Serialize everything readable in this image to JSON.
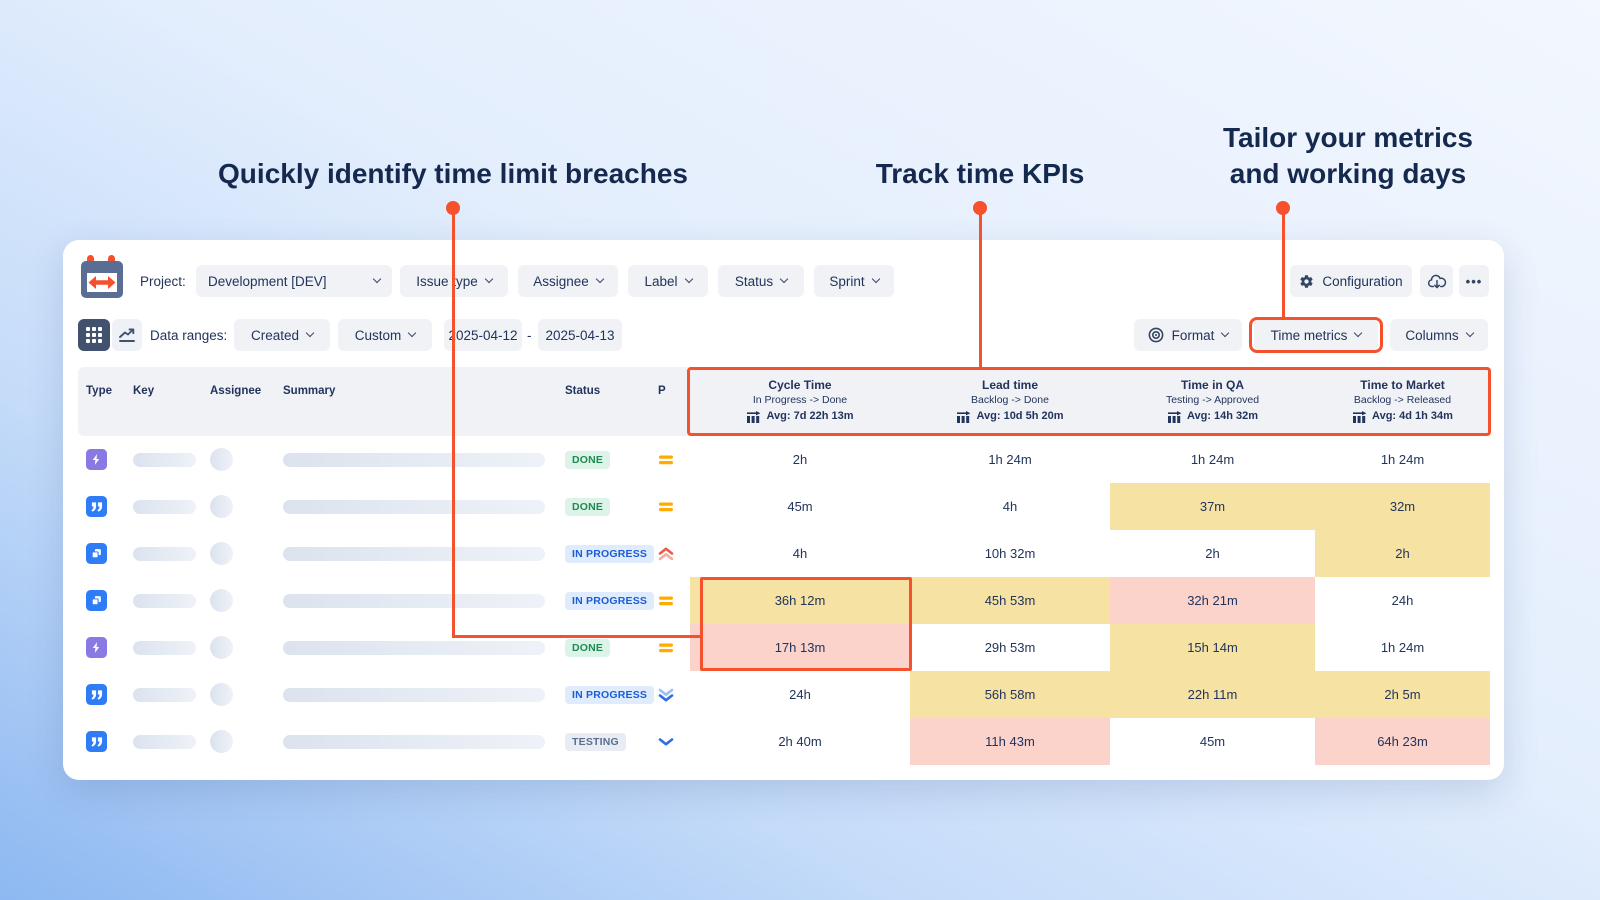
{
  "annotations": {
    "breaches": "Quickly identify time limit breaches",
    "kpis": "Track time KPIs",
    "tailor_line1": "Tailor your metrics",
    "tailor_line2": "and working days"
  },
  "toolbar": {
    "project_label": "Project:",
    "project_value": "Development [DEV]",
    "filters": [
      "Issue type",
      "Assignee",
      "Label",
      "Status",
      "Sprint"
    ],
    "configuration_label": "Configuration",
    "more_label": "•••"
  },
  "toolbar2": {
    "data_ranges_label": "Data ranges:",
    "range_field": "Created",
    "range_mode": "Custom",
    "date_from": "2025-04-12",
    "date_separator": "-",
    "date_to": "2025-04-13",
    "format_label": "Format",
    "time_metrics_label": "Time metrics",
    "columns_label": "Columns"
  },
  "table": {
    "columns": [
      "Type",
      "Key",
      "Assignee",
      "Summary",
      "Status",
      "P"
    ],
    "metrics": [
      {
        "title": "Cycle Time",
        "transition": "In Progress -> Done",
        "avg": "Avg: 7d 22h 13m"
      },
      {
        "title": "Lead time",
        "transition": "Backlog -> Done",
        "avg": "Avg: 10d 5h 20m"
      },
      {
        "title": "Time in QA",
        "transition": "Testing -> Approved",
        "avg": "Avg: 14h 32m"
      },
      {
        "title": "Time to Market",
        "transition": "Backlog -> Released",
        "avg": "Avg: 4d 1h 34m"
      }
    ],
    "rows": [
      {
        "type": "bolt",
        "status": "DONE",
        "status_kind": "done",
        "priority": "medium",
        "values": [
          "2h",
          "1h 24m",
          "1h 24m",
          "1h 24m"
        ],
        "cell_bg": [
          "white",
          "white",
          "white",
          "white"
        ]
      },
      {
        "type": "quote",
        "status": "DONE",
        "status_kind": "done",
        "priority": "medium",
        "values": [
          "45m",
          "4h",
          "37m",
          "32m"
        ],
        "cell_bg": [
          "white",
          "white",
          "yellow",
          "yellow"
        ]
      },
      {
        "type": "pages",
        "status": "IN PROGRESS",
        "status_kind": "inprogress",
        "priority": "highest",
        "values": [
          "4h",
          "10h 32m",
          "2h",
          "2h"
        ],
        "cell_bg": [
          "white",
          "white",
          "white",
          "yellow"
        ]
      },
      {
        "type": "pages",
        "status": "IN PROGRESS",
        "status_kind": "inprogress",
        "priority": "medium",
        "values": [
          "36h 12m",
          "45h 53m",
          "32h 21m",
          "24h"
        ],
        "cell_bg": [
          "yellow",
          "yellow",
          "pink",
          "white"
        ]
      },
      {
        "type": "bolt",
        "status": "DONE",
        "status_kind": "done",
        "priority": "medium",
        "values": [
          "17h 13m",
          "29h 53m",
          "15h 14m",
          "1h 24m"
        ],
        "cell_bg": [
          "pink",
          "white",
          "yellow",
          "white"
        ]
      },
      {
        "type": "quote",
        "status": "IN PROGRESS",
        "status_kind": "inprogress",
        "priority": "lowest",
        "values": [
          "24h",
          "56h 58m",
          "22h 11m",
          "2h 5m"
        ],
        "cell_bg": [
          "white",
          "yellow",
          "yellow",
          "yellow"
        ]
      },
      {
        "type": "quote",
        "status": "TESTING",
        "status_kind": "testing",
        "priority": "low",
        "values": [
          "2h 40m",
          "11h 43m",
          "45m",
          "64h 23m"
        ],
        "cell_bg": [
          "white",
          "pink",
          "white",
          "pink"
        ]
      }
    ]
  },
  "colors": {
    "accent": "#f4512c",
    "warn_cell_bg": "#f6e2a2",
    "breach_cell_bg": "#fbd3cb",
    "navy_text": "#22345c",
    "done_badge": "#1f8a55",
    "inprogress_badge": "#1d5cd7",
    "testing_badge": "#57708f",
    "priority_medium": "#ffab00",
    "priority_high": "#ec5b4d",
    "priority_low": "#2e6fe3"
  }
}
